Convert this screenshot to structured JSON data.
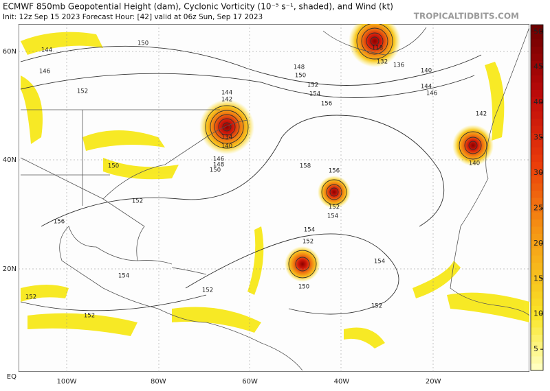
{
  "header": {
    "title": "ECMWF 850mb Geopotential Height (dam), Cyclonic Vorticity (10⁻⁵ s⁻¹, shaded), and Wind (kt)",
    "subtitle": "Init: 12z Sep 15 2023   Forecast Hour: [42]   valid at 06z Sun, Sep 17 2023",
    "site": "TROPICALTIDBITS.COM"
  },
  "map": {
    "lat_labels": [
      "60N",
      "40N",
      "20N",
      "EQ"
    ],
    "lon_labels": [
      "100W",
      "80W",
      "60W",
      "40W",
      "20W"
    ],
    "contour_labels": [
      "144",
      "150",
      "146",
      "152",
      "148",
      "150",
      "152",
      "154",
      "156",
      "144",
      "142",
      "134",
      "140",
      "146",
      "148",
      "150",
      "158",
      "156",
      "152",
      "154",
      "154",
      "152",
      "154",
      "150",
      "152",
      "152",
      "152",
      "152",
      "154",
      "156",
      "152",
      "150",
      "118",
      "132",
      "136",
      "140",
      "144",
      "146",
      "142",
      "140"
    ]
  },
  "colorbar": {
    "lim": [
      2,
      51
    ],
    "ticks": [
      5,
      10,
      15,
      20,
      25,
      30,
      35,
      40,
      45,
      50
    ]
  }
}
